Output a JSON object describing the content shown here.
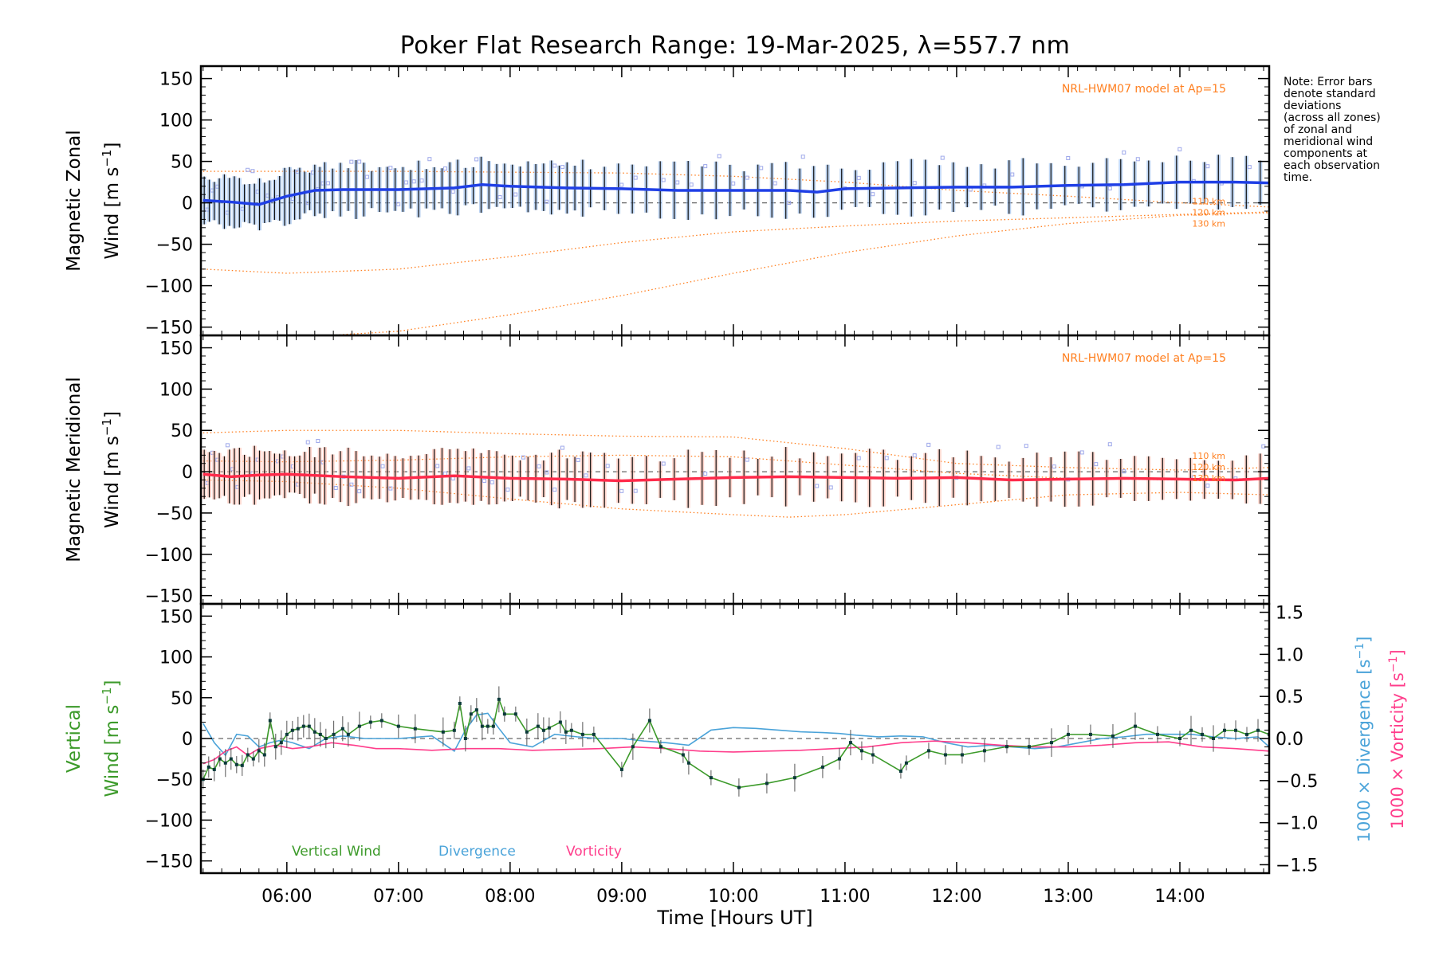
{
  "title": "Poker Flat Research Range: 19-Mar-2025, λ=557.7 nm",
  "note": "Note: Error bars\ndenote standard\ndeviations\n(across all zones)\nof zonal and\nmeridional wind\ncomponents at\neach observation\ntime.",
  "colors": {
    "zonal": "#1f3fe6",
    "zonal_light": "#8fb6e8",
    "meridional": "#ff2a4a",
    "meridional_light": "#ffb7a8",
    "model": "#ff7f1f",
    "vertical": "#3c9a2a",
    "divergence": "#4aa3d9",
    "vorticity": "#ff3d8b",
    "points": "#9ea8ea",
    "bars": "#111111"
  },
  "chart_data": [
    {
      "type": "line",
      "panel": "zonal",
      "ylabel": "Magnetic Zonal",
      "ylabel2": "Wind [m s-1]",
      "ylim": [
        -160,
        165
      ],
      "yticks": [
        150,
        100,
        50,
        0,
        -50,
        -100,
        -150
      ],
      "xlim": [
        5.23,
        14.8
      ],
      "model_label": "NRL-HWM07 model at Ap=15",
      "model_altitudes": [
        "110 km",
        "120 km",
        "130 km"
      ],
      "series": [
        {
          "role": "measured",
          "x": [
            5.25,
            5.5,
            5.75,
            6.0,
            6.25,
            6.5,
            7.0,
            7.5,
            7.75,
            8.0,
            8.5,
            9.0,
            9.5,
            10.0,
            10.5,
            10.75,
            11.0,
            11.5,
            12.0,
            12.5,
            13.0,
            13.5,
            14.0,
            14.5,
            14.8
          ],
          "y": [
            3,
            1,
            -2,
            8,
            15,
            16,
            16,
            18,
            22,
            20,
            18,
            17,
            15,
            15,
            15,
            13,
            17,
            18,
            19,
            19,
            21,
            22,
            25,
            25,
            24
          ]
        },
        {
          "role": "model",
          "name": "110 km",
          "x": [
            5.25,
            6.0,
            7.0,
            8.0,
            9.0,
            10.0,
            11.0,
            12.0,
            13.0,
            14.0,
            14.8
          ],
          "y": [
            38,
            38,
            38,
            37,
            36,
            32,
            25,
            15,
            8,
            0,
            -5
          ]
        },
        {
          "role": "model",
          "name": "120 km",
          "x": [
            5.25,
            6.0,
            7.0,
            8.0,
            9.0,
            10.0,
            11.0,
            12.0,
            13.0,
            14.0,
            14.8
          ],
          "y": [
            -80,
            -85,
            -80,
            -65,
            -48,
            -35,
            -28,
            -22,
            -18,
            -14,
            -11
          ]
        },
        {
          "role": "model",
          "name": "130 km",
          "x": [
            5.25,
            6.0,
            7.0,
            8.0,
            9.0,
            10.0,
            11.0,
            12.0,
            13.0,
            14.0,
            14.8
          ],
          "y": [
            -160,
            -163,
            -155,
            -135,
            -112,
            -85,
            -60,
            -40,
            -25,
            -15,
            -12
          ]
        }
      ]
    },
    {
      "type": "line",
      "panel": "meridional",
      "ylabel": "Magnetic Meridional",
      "ylabel2": "Wind [m s-1]",
      "ylim": [
        -160,
        165
      ],
      "yticks": [
        150,
        100,
        50,
        0,
        -50,
        -100,
        -150
      ],
      "xlim": [
        5.23,
        14.8
      ],
      "model_label": "NRL-HWM07 model at Ap=15",
      "model_altitudes": [
        "110 km",
        "120 km",
        "130 km"
      ],
      "series": [
        {
          "role": "measured",
          "x": [
            5.25,
            5.5,
            5.75,
            6.0,
            6.5,
            7.0,
            7.5,
            8.0,
            8.5,
            9.0,
            9.5,
            10.0,
            10.5,
            11.0,
            11.5,
            12.0,
            12.5,
            13.0,
            13.5,
            14.0,
            14.5,
            14.8
          ],
          "y": [
            -3,
            -6,
            -4,
            -3,
            -6,
            -8,
            -5,
            -8,
            -9,
            -11,
            -9,
            -7,
            -6,
            -7,
            -8,
            -7,
            -10,
            -9,
            -8,
            -9,
            -10,
            -8
          ]
        },
        {
          "role": "model",
          "name": "110 km",
          "x": [
            5.25,
            6.0,
            7.0,
            8.0,
            9.0,
            10.0,
            11.0,
            12.0,
            13.0,
            14.0,
            14.8
          ],
          "y": [
            47,
            50,
            50,
            46,
            43,
            42,
            28,
            10,
            5,
            2,
            5
          ]
        },
        {
          "role": "model",
          "name": "120 km",
          "x": [
            5.25,
            6.0,
            7.0,
            8.0,
            9.0,
            10.0,
            11.0,
            12.0,
            13.0,
            14.0,
            14.8
          ],
          "y": [
            13,
            12,
            14,
            18,
            20,
            18,
            8,
            -2,
            -8,
            -10,
            -8
          ]
        },
        {
          "role": "model",
          "name": "130 km",
          "x": [
            5.25,
            6.0,
            7.0,
            8.0,
            9.0,
            10.0,
            10.5,
            11.0,
            12.0,
            13.0,
            14.0,
            14.8
          ],
          "y": [
            -10,
            -12,
            -20,
            -33,
            -45,
            -52,
            -55,
            -52,
            -40,
            -28,
            -25,
            -28
          ]
        }
      ]
    },
    {
      "type": "line",
      "panel": "vertical",
      "ylabel": "Vertical",
      "ylabel2": "Wind [m s-1]",
      "ylabel_right1": "1000 × Divergence [s-1]",
      "ylabel_right2": "1000 × Vorticity [s-1]",
      "ylim": [
        -165,
        165
      ],
      "yticks": [
        150,
        100,
        50,
        0,
        -50,
        -100,
        -150
      ],
      "y2lim": [
        -1.6,
        1.6
      ],
      "y2ticks": [
        "1.5",
        "1.0",
        "0.5",
        "0.0",
        "−0.5",
        "−1.0",
        "−1.5"
      ],
      "xlim": [
        5.23,
        14.8
      ],
      "xticks": [
        "06:00",
        "07:00",
        "08:00",
        "09:00",
        "10:00",
        "11:00",
        "12:00",
        "13:00",
        "14:00"
      ],
      "xlabel": "Time [Hours UT]",
      "legend": [
        "Vertical Wind",
        "Divergence",
        "Vorticity"
      ],
      "series": [
        {
          "name": "Vertical Wind",
          "x": [
            5.25,
            5.3,
            5.35,
            5.4,
            5.45,
            5.5,
            5.55,
            5.6,
            5.65,
            5.7,
            5.75,
            5.8,
            5.85,
            5.9,
            5.95,
            6.0,
            6.05,
            6.1,
            6.15,
            6.2,
            6.25,
            6.3,
            6.35,
            6.42,
            6.5,
            6.55,
            6.65,
            6.75,
            6.85,
            7.0,
            7.15,
            7.4,
            7.5,
            7.55,
            7.6,
            7.65,
            7.7,
            7.75,
            7.8,
            7.85,
            7.9,
            7.95,
            8.05,
            8.15,
            8.25,
            8.3,
            8.35,
            8.45,
            8.5,
            8.55,
            8.65,
            8.75,
            9.0,
            9.1,
            9.25,
            9.35,
            9.55,
            9.6,
            9.8,
            10.05,
            10.3,
            10.55,
            10.8,
            10.95,
            11.05,
            11.15,
            11.25,
            11.5,
            11.55,
            11.75,
            11.9,
            12.05,
            12.25,
            12.45,
            12.65,
            12.85,
            13.0,
            13.2,
            13.4,
            13.6,
            13.8,
            14.0,
            14.1,
            14.2,
            14.3,
            14.4,
            14.5,
            14.6,
            14.7,
            14.8
          ],
          "y": [
            -50,
            -35,
            -38,
            -25,
            -30,
            -25,
            -32,
            -33,
            -20,
            -25,
            -15,
            -20,
            22,
            -10,
            -5,
            5,
            10,
            12,
            15,
            15,
            8,
            5,
            0,
            5,
            12,
            5,
            15,
            20,
            22,
            15,
            12,
            8,
            10,
            43,
            0,
            30,
            35,
            15,
            15,
            15,
            48,
            30,
            30,
            8,
            15,
            10,
            13,
            20,
            8,
            10,
            5,
            5,
            -38,
            -10,
            22,
            -10,
            -20,
            -30,
            -48,
            -60,
            -55,
            -48,
            -35,
            -25,
            -5,
            -15,
            -20,
            -40,
            -30,
            -15,
            -20,
            -20,
            -15,
            -10,
            -10,
            -5,
            5,
            5,
            3,
            15,
            5,
            0,
            10,
            5,
            0,
            10,
            10,
            5,
            10,
            5
          ]
        },
        {
          "name": "Divergence",
          "x": [
            5.25,
            5.35,
            5.45,
            5.55,
            5.65,
            5.75,
            5.85,
            5.95,
            6.05,
            6.2,
            6.35,
            6.5,
            6.7,
            7.0,
            7.3,
            7.5,
            7.6,
            7.7,
            7.8,
            7.9,
            8.0,
            8.2,
            8.4,
            8.6,
            8.8,
            9.0,
            9.2,
            9.4,
            9.6,
            9.8,
            10.0,
            10.2,
            10.4,
            10.6,
            10.8,
            10.95,
            11.1,
            11.3,
            11.5,
            11.7,
            11.9,
            12.1,
            12.3,
            12.5,
            12.7,
            12.9,
            13.1,
            13.3,
            13.5,
            13.7,
            13.9,
            14.1,
            14.3,
            14.5,
            14.7,
            14.8
          ],
          "y": [
            0.18,
            -0.05,
            -0.2,
            0.05,
            0.03,
            -0.1,
            -0.05,
            -0.02,
            -0.05,
            -0.12,
            0.0,
            0.03,
            0.0,
            0.0,
            0.03,
            -0.15,
            0.1,
            0.28,
            0.3,
            0.12,
            -0.05,
            -0.1,
            0.05,
            0.02,
            0.0,
            0.0,
            -0.03,
            -0.05,
            -0.08,
            0.1,
            0.13,
            0.12,
            0.1,
            0.08,
            0.07,
            0.06,
            0.04,
            0.02,
            0.03,
            0.02,
            -0.05,
            -0.1,
            -0.08,
            -0.1,
            -0.12,
            -0.1,
            -0.05,
            0.0,
            0.02,
            0.05,
            0.05,
            0.05,
            0.02,
            0.0,
            0.02,
            -0.1
          ]
        },
        {
          "name": "Vorticity",
          "x": [
            5.25,
            5.35,
            5.45,
            5.55,
            5.65,
            5.75,
            5.9,
            6.05,
            6.2,
            6.4,
            6.6,
            6.8,
            7.0,
            7.3,
            7.6,
            7.9,
            8.2,
            8.5,
            8.8,
            9.1,
            9.4,
            9.7,
            10.0,
            10.3,
            10.6,
            10.9,
            11.2,
            11.5,
            11.8,
            12.1,
            12.4,
            12.7,
            13.0,
            13.3,
            13.6,
            13.9,
            14.2,
            14.5,
            14.8
          ],
          "y": [
            -0.3,
            -0.25,
            -0.15,
            -0.1,
            -0.2,
            -0.12,
            -0.08,
            -0.12,
            -0.1,
            -0.05,
            -0.08,
            -0.12,
            -0.12,
            -0.14,
            -0.12,
            -0.12,
            -0.14,
            -0.13,
            -0.12,
            -0.1,
            -0.12,
            -0.15,
            -0.16,
            -0.15,
            -0.14,
            -0.12,
            -0.1,
            -0.05,
            -0.03,
            -0.05,
            -0.08,
            -0.1,
            -0.1,
            -0.08,
            -0.05,
            -0.04,
            -0.1,
            -0.12,
            -0.15
          ]
        }
      ]
    }
  ]
}
